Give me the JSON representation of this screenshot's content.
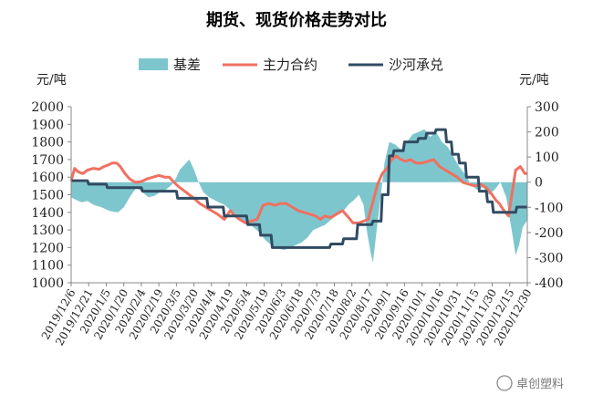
{
  "chart_data": {
    "type": "line",
    "title": "期货、现货价格走势对比",
    "left_unit": "元/吨",
    "right_unit": "元/吨",
    "y_left": {
      "min": 1000,
      "max": 2000,
      "ticks": [
        2000,
        1900,
        1800,
        1700,
        1600,
        1500,
        1400,
        1300,
        1200,
        1100,
        1000
      ]
    },
    "y_right": {
      "min": -400,
      "max": 300,
      "ticks": [
        300,
        200,
        100,
        0,
        -100,
        -200,
        -300,
        -400
      ]
    },
    "legend_position": "top",
    "x_tick_labels": [
      "2019/12/6",
      "2019/12/21",
      "2020/1/5",
      "2020/1/20",
      "2020/2/4",
      "2020/2/19",
      "2020/3/5",
      "2020/3/20",
      "2020/4/4",
      "2020/4/19",
      "2020/5/4",
      "2020/5/19",
      "2020/6/3",
      "2020/6/18",
      "2020/7/3",
      "2020/7/18",
      "2020/8/2",
      "2020/8/17",
      "2020/9/1",
      "2020/9/16",
      "2020/10/1",
      "2020/10/16",
      "2020/10/31",
      "2020/11/15",
      "2020/11/30",
      "2020/12/15",
      "2020/12/30"
    ],
    "x_start": "2019/12/6",
    "x_end": "2020/12/30",
    "series": [
      {
        "name": "基差",
        "kind": "area",
        "axis": "right",
        "color": "#7ec6cd",
        "points": [
          [
            "2019/12/6",
            -60
          ],
          [
            "2019/12/10",
            -70
          ],
          [
            "2019/12/15",
            -80
          ],
          [
            "2019/12/20",
            -75
          ],
          [
            "2019/12/25",
            -90
          ],
          [
            "2020/1/1",
            -100
          ],
          [
            "2020/1/8",
            -115
          ],
          [
            "2020/1/15",
            -120
          ],
          [
            "2020/1/20",
            -100
          ],
          [
            "2020/1/25",
            -60
          ],
          [
            "2020/1/31",
            -20
          ],
          [
            "2020/2/5",
            -40
          ],
          [
            "2020/2/10",
            -60
          ],
          [
            "2020/2/15",
            -55
          ],
          [
            "2020/2/20",
            -40
          ],
          [
            "2020/2/25",
            -30
          ],
          [
            "2020/3/1",
            -10
          ],
          [
            "2020/3/5",
            20
          ],
          [
            "2020/3/8",
            50
          ],
          [
            "2020/3/12",
            70
          ],
          [
            "2020/3/16",
            90
          ],
          [
            "2020/3/20",
            50
          ],
          [
            "2020/3/24",
            0
          ],
          [
            "2020/3/28",
            -40
          ],
          [
            "2020/4/2",
            -60
          ],
          [
            "2020/4/6",
            -70
          ],
          [
            "2020/4/10",
            -80
          ],
          [
            "2020/4/15",
            -90
          ],
          [
            "2020/4/20",
            -110
          ],
          [
            "2020/4/25",
            -130
          ],
          [
            "2020/4/30",
            -150
          ],
          [
            "2020/5/5",
            -160
          ],
          [
            "2020/5/10",
            -180
          ],
          [
            "2020/5/15",
            -200
          ],
          [
            "2020/5/20",
            -230
          ],
          [
            "2020/5/25",
            -250
          ],
          [
            "2020/5/30",
            -260
          ],
          [
            "2020/6/5",
            -270
          ],
          [
            "2020/6/10",
            -260
          ],
          [
            "2020/6/15",
            -250
          ],
          [
            "2020/6/20",
            -240
          ],
          [
            "2020/6/25",
            -220
          ],
          [
            "2020/6/30",
            -190
          ],
          [
            "2020/7/5",
            -180
          ],
          [
            "2020/7/10",
            -170
          ],
          [
            "2020/7/15",
            -150
          ],
          [
            "2020/7/20",
            -130
          ],
          [
            "2020/7/25",
            -120
          ],
          [
            "2020/7/30",
            -90
          ],
          [
            "2020/8/4",
            -70
          ],
          [
            "2020/8/8",
            -50
          ],
          [
            "2020/8/12",
            -90
          ],
          [
            "2020/8/15",
            -200
          ],
          [
            "2020/8/18",
            -280
          ],
          [
            "2020/8/20",
            -320
          ],
          [
            "2020/8/23",
            -200
          ],
          [
            "2020/8/26",
            -80
          ],
          [
            "2020/8/30",
            80
          ],
          [
            "2020/9/3",
            160
          ],
          [
            "2020/9/8",
            150
          ],
          [
            "2020/9/13",
            130
          ],
          [
            "2020/9/18",
            160
          ],
          [
            "2020/9/23",
            190
          ],
          [
            "2020/9/28",
            200
          ],
          [
            "2020/10/3",
            210
          ],
          [
            "2020/10/8",
            180
          ],
          [
            "2020/10/13",
            200
          ],
          [
            "2020/10/18",
            160
          ],
          [
            "2020/10/23",
            140
          ],
          [
            "2020/10/28",
            100
          ],
          [
            "2020/11/2",
            60
          ],
          [
            "2020/11/7",
            30
          ],
          [
            "2020/11/12",
            -10
          ],
          [
            "2020/11/17",
            -30
          ],
          [
            "2020/11/22",
            -20
          ],
          [
            "2020/11/27",
            -50
          ],
          [
            "2020/12/2",
            -30
          ],
          [
            "2020/12/7",
            0
          ],
          [
            "2020/12/12",
            -60
          ],
          [
            "2020/12/17",
            -200
          ],
          [
            "2020/12/20",
            -290
          ],
          [
            "2020/12/23",
            -250
          ],
          [
            "2020/12/26",
            -180
          ],
          [
            "2020/12/30",
            -150
          ]
        ]
      },
      {
        "name": "主力合约",
        "kind": "line",
        "axis": "left",
        "color": "#f07060",
        "points": [
          [
            "2019/12/6",
            1580
          ],
          [
            "2019/12/9",
            1650
          ],
          [
            "2019/12/12",
            1630
          ],
          [
            "2019/12/16",
            1620
          ],
          [
            "2019/12/20",
            1640
          ],
          [
            "2019/12/25",
            1650
          ],
          [
            "2019/12/30",
            1645
          ],
          [
            "2020/1/3",
            1660
          ],
          [
            "2020/1/7",
            1670
          ],
          [
            "2020/1/10",
            1680
          ],
          [
            "2020/1/14",
            1680
          ],
          [
            "2020/1/17",
            1660
          ],
          [
            "2020/1/21",
            1620
          ],
          [
            "2020/1/25",
            1590
          ],
          [
            "2020/1/30",
            1570
          ],
          [
            "2020/2/4",
            1575
          ],
          [
            "2020/2/9",
            1590
          ],
          [
            "2020/2/14",
            1600
          ],
          [
            "2020/2/19",
            1610
          ],
          [
            "2020/2/24",
            1600
          ],
          [
            "2020/2/28",
            1600
          ],
          [
            "2020/3/3",
            1570
          ],
          [
            "2020/3/8",
            1540
          ],
          [
            "2020/3/12",
            1520
          ],
          [
            "2020/3/16",
            1500
          ],
          [
            "2020/3/20",
            1480
          ],
          [
            "2020/3/25",
            1450
          ],
          [
            "2020/3/30",
            1430
          ],
          [
            "2020/4/4",
            1410
          ],
          [
            "2020/4/9",
            1390
          ],
          [
            "2020/4/15",
            1360
          ],
          [
            "2020/4/20",
            1410
          ],
          [
            "2020/4/24",
            1380
          ],
          [
            "2020/4/28",
            1360
          ],
          [
            "2020/5/3",
            1340
          ],
          [
            "2020/5/8",
            1350
          ],
          [
            "2020/5/13",
            1360
          ],
          [
            "2020/5/18",
            1440
          ],
          [
            "2020/5/23",
            1450
          ],
          [
            "2020/5/28",
            1440
          ],
          [
            "2020/6/2",
            1450
          ],
          [
            "2020/6/7",
            1450
          ],
          [
            "2020/6/12",
            1430
          ],
          [
            "2020/6/17",
            1410
          ],
          [
            "2020/6/22",
            1400
          ],
          [
            "2020/6/27",
            1390
          ],
          [
            "2020/7/2",
            1380
          ],
          [
            "2020/7/6",
            1360
          ],
          [
            "2020/7/10",
            1380
          ],
          [
            "2020/7/15",
            1370
          ],
          [
            "2020/7/20",
            1390
          ],
          [
            "2020/7/25",
            1410
          ],
          [
            "2020/7/29",
            1380
          ],
          [
            "2020/8/3",
            1340
          ],
          [
            "2020/8/8",
            1340
          ],
          [
            "2020/8/12",
            1350
          ],
          [
            "2020/8/16",
            1360
          ],
          [
            "2020/8/20",
            1460
          ],
          [
            "2020/8/24",
            1560
          ],
          [
            "2020/8/28",
            1620
          ],
          [
            "2020/9/1",
            1650
          ],
          [
            "2020/9/5",
            1700
          ],
          [
            "2020/9/9",
            1720
          ],
          [
            "2020/9/13",
            1700
          ],
          [
            "2020/9/17",
            1690
          ],
          [
            "2020/9/21",
            1700
          ],
          [
            "2020/9/26",
            1680
          ],
          [
            "2020/10/1",
            1680
          ],
          [
            "2020/10/6",
            1690
          ],
          [
            "2020/10/11",
            1700
          ],
          [
            "2020/10/16",
            1660
          ],
          [
            "2020/10/21",
            1640
          ],
          [
            "2020/10/26",
            1620
          ],
          [
            "2020/10/31",
            1600
          ],
          [
            "2020/11/5",
            1570
          ],
          [
            "2020/11/10",
            1560
          ],
          [
            "2020/11/15",
            1550
          ],
          [
            "2020/11/20",
            1560
          ],
          [
            "2020/11/25",
            1540
          ],
          [
            "2020/11/30",
            1500
          ],
          [
            "2020/12/3",
            1470
          ],
          [
            "2020/12/6",
            1450
          ],
          [
            "2020/12/10",
            1410
          ],
          [
            "2020/12/14",
            1380
          ],
          [
            "2020/12/17",
            1510
          ],
          [
            "2020/12/20",
            1640
          ],
          [
            "2020/12/24",
            1660
          ],
          [
            "2020/12/28",
            1620
          ],
          [
            "2020/12/30",
            1620
          ]
        ]
      },
      {
        "name": "沙河承兑",
        "kind": "line",
        "axis": "left",
        "color": "#314b63",
        "points": [
          [
            "2019/12/6",
            1580
          ],
          [
            "2019/12/20",
            1580
          ],
          [
            "2019/12/21",
            1560
          ],
          [
            "2020/1/5",
            1560
          ],
          [
            "2020/1/6",
            1540
          ],
          [
            "2020/2/4",
            1540
          ],
          [
            "2020/2/5",
            1520
          ],
          [
            "2020/3/5",
            1520
          ],
          [
            "2020/3/6",
            1480
          ],
          [
            "2020/3/31",
            1480
          ],
          [
            "2020/4/1",
            1430
          ],
          [
            "2020/4/14",
            1430
          ],
          [
            "2020/4/15",
            1380
          ],
          [
            "2020/5/4",
            1380
          ],
          [
            "2020/5/5",
            1330
          ],
          [
            "2020/5/15",
            1330
          ],
          [
            "2020/5/16",
            1270
          ],
          [
            "2020/5/25",
            1270
          ],
          [
            "2020/5/26",
            1200
          ],
          [
            "2020/7/14",
            1200
          ],
          [
            "2020/7/15",
            1220
          ],
          [
            "2020/7/25",
            1220
          ],
          [
            "2020/7/26",
            1250
          ],
          [
            "2020/8/6",
            1250
          ],
          [
            "2020/8/7",
            1330
          ],
          [
            "2020/8/19",
            1330
          ],
          [
            "2020/8/20",
            1350
          ],
          [
            "2020/8/27",
            1350
          ],
          [
            "2020/8/28",
            1500
          ],
          [
            "2020/9/2",
            1500
          ],
          [
            "2020/9/3",
            1720
          ],
          [
            "2020/9/6",
            1720
          ],
          [
            "2020/9/7",
            1750
          ],
          [
            "2020/9/15",
            1750
          ],
          [
            "2020/9/16",
            1800
          ],
          [
            "2020/9/27",
            1800
          ],
          [
            "2020/9/28",
            1820
          ],
          [
            "2020/10/4",
            1820
          ],
          [
            "2020/10/5",
            1850
          ],
          [
            "2020/10/12",
            1850
          ],
          [
            "2020/10/13",
            1870
          ],
          [
            "2020/10/21",
            1870
          ],
          [
            "2020/10/22",
            1800
          ],
          [
            "2020/10/26",
            1800
          ],
          [
            "2020/10/27",
            1730
          ],
          [
            "2020/11/1",
            1730
          ],
          [
            "2020/11/2",
            1680
          ],
          [
            "2020/11/7",
            1680
          ],
          [
            "2020/11/8",
            1600
          ],
          [
            "2020/11/18",
            1600
          ],
          [
            "2020/11/19",
            1520
          ],
          [
            "2020/11/25",
            1520
          ],
          [
            "2020/11/26",
            1460
          ],
          [
            "2020/11/30",
            1460
          ],
          [
            "2020/12/1",
            1400
          ],
          [
            "2020/12/20",
            1400
          ],
          [
            "2020/12/21",
            1430
          ],
          [
            "2020/12/30",
            1430
          ]
        ]
      }
    ]
  },
  "watermark": {
    "text": "卓创塑料"
  }
}
